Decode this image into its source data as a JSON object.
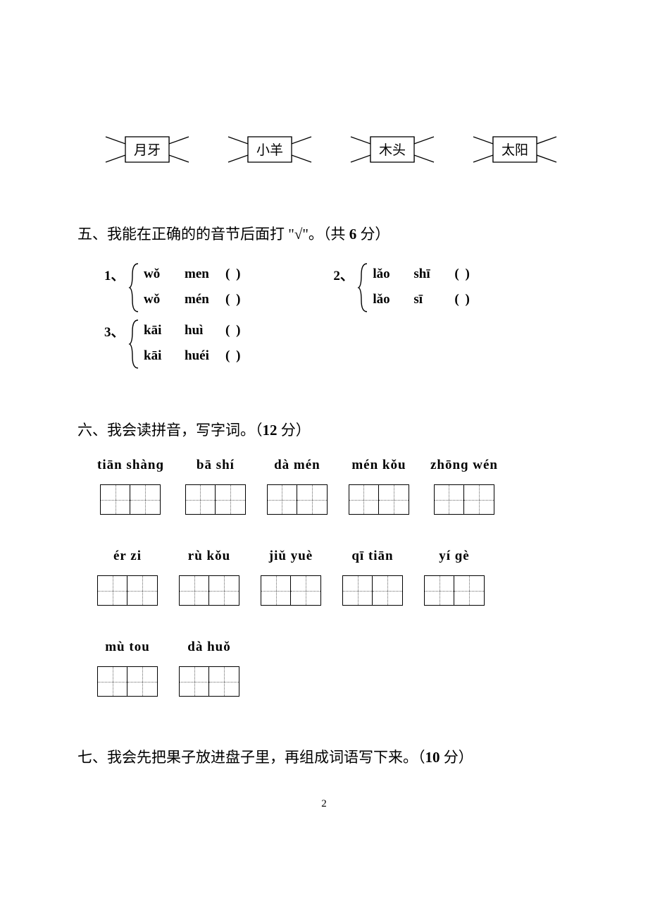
{
  "banners": [
    "月牙",
    "小羊",
    "木头",
    "太阳"
  ],
  "section5": {
    "title_prefix": "五、我能在正确的的音节后面打 \"",
    "title_check": "√",
    "title_suffix": "\"。（共 ",
    "title_points": "6",
    "title_tail": " 分）",
    "pairs": [
      {
        "num": "1、",
        "opts": [
          {
            "a": "wǒ",
            "b": "men",
            "paren": "(       )"
          },
          {
            "a": "wǒ",
            "b": "mén",
            "paren": "(       )"
          }
        ]
      },
      {
        "num": "2、",
        "opts": [
          {
            "a": "lǎo",
            "b": "shī",
            "paren": "(     )"
          },
          {
            "a": "lǎo",
            "b": "sī",
            "paren": "(     )"
          }
        ]
      },
      {
        "num": "3、",
        "opts": [
          {
            "a": "kāi",
            "b": "huì",
            "paren": "(     )"
          },
          {
            "a": "kāi",
            "b": "huéi",
            "paren": "(     )"
          }
        ]
      }
    ]
  },
  "section6": {
    "title": "六、我会读拼音，写字词。（",
    "points": "12",
    "tail": " 分）",
    "rows": [
      [
        "tiān shànɡ",
        "bā shí",
        "dà mén",
        "mén kǒu",
        "zhōnɡ wén"
      ],
      [
        "ér  zi",
        "rù  kǒu",
        "jiǔ  yuè",
        "qī  tiān",
        "yí  ɡè"
      ],
      [
        "mù  tou",
        "dà  huǒ"
      ]
    ]
  },
  "section7": {
    "title": "七、我会先把果子放进盘子里，再组成词语写下来。（",
    "points": "10",
    "tail": " 分）"
  },
  "page_number": "2"
}
